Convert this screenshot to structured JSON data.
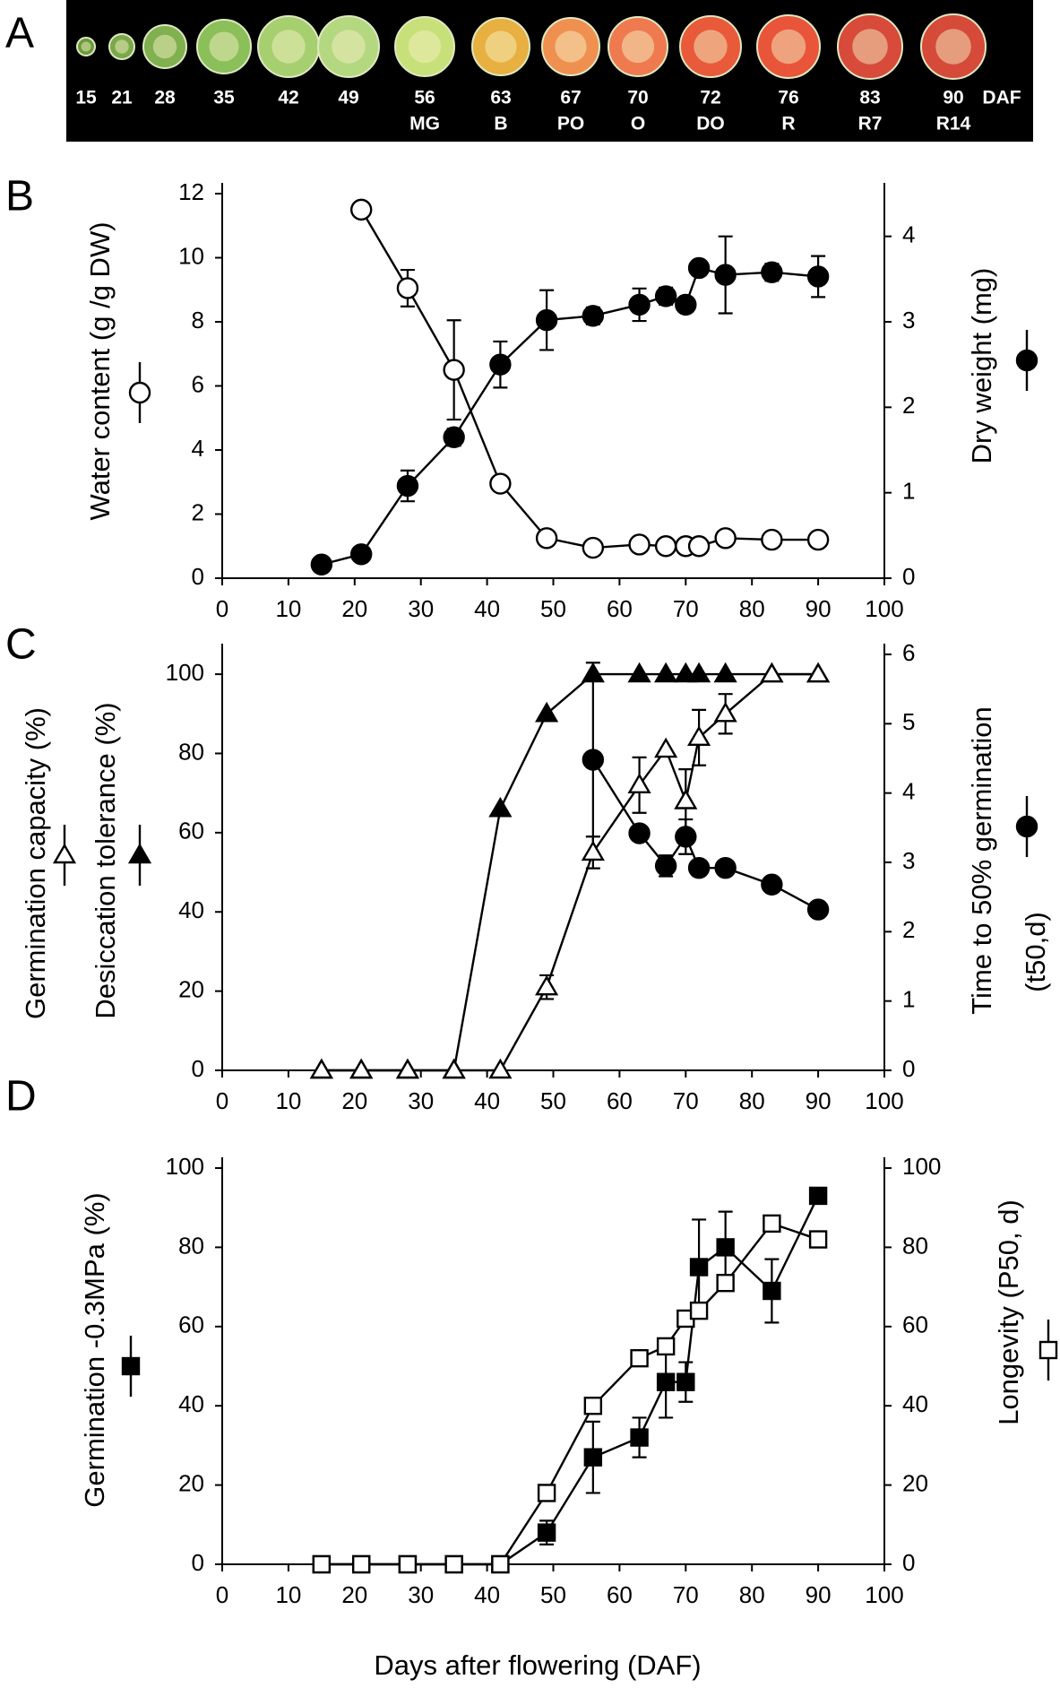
{
  "photo_strip": {
    "label": "A",
    "days": [
      "15",
      "21",
      "28",
      "35",
      "42",
      "49",
      "56",
      "63",
      "67",
      "70",
      "72",
      "76",
      "83",
      "90"
    ],
    "stages": [
      null,
      null,
      null,
      null,
      null,
      null,
      "MG",
      "B",
      "PO",
      "O",
      "DO",
      "R",
      "R7",
      "R14"
    ],
    "unit": "DAF"
  },
  "chart_data": [
    {
      "type": "line",
      "panel_label": "B",
      "xlim": [
        0,
        100
      ],
      "xticks": [
        0,
        10,
        20,
        30,
        40,
        50,
        60,
        70,
        80,
        90,
        100
      ],
      "ylim": [
        0,
        12
      ],
      "yticks": [
        0,
        2,
        4,
        6,
        8,
        10,
        12
      ],
      "y2lim": [
        0,
        4.5
      ],
      "y2ticks": [
        0,
        1,
        2,
        3,
        4
      ],
      "y_label": [
        "Water content (g /g DW)"
      ],
      "y2_label": [
        "Dry weight (mg)"
      ],
      "series": [
        {
          "marker": "circle",
          "fill": "#ffffff",
          "color": "#000000",
          "x": [
            21,
            28,
            35,
            42,
            49,
            56,
            63,
            67,
            70,
            72,
            76,
            83,
            90
          ],
          "values": [
            11.5,
            9.05,
            6.5,
            2.95,
            1.25,
            0.95,
            1.05,
            1.0,
            1.0,
            1.0,
            1.25,
            1.2,
            1.2
          ],
          "errors": [
            null,
            0.57,
            1.55,
            null,
            null,
            null,
            null,
            null,
            null,
            null,
            null,
            null,
            null
          ]
        },
        {
          "marker": "circle",
          "fill": "#000000",
          "color": "#000000",
          "axis": "y2",
          "x": [
            15,
            21,
            28,
            35,
            42,
            49,
            56,
            63,
            67,
            70,
            72,
            76,
            83,
            90
          ],
          "values": [
            0.16,
            0.28,
            1.08,
            1.65,
            2.5,
            3.02,
            3.07,
            3.2,
            3.3,
            3.2,
            3.63,
            3.55,
            3.58,
            3.53
          ],
          "errors": [
            null,
            null,
            0.18,
            0.1,
            0.27,
            0.35,
            0.1,
            0.19,
            0.1,
            0.05,
            0.05,
            0.45,
            0.1,
            0.24
          ]
        }
      ]
    },
    {
      "type": "line",
      "panel_label": "C",
      "xlim": [
        0,
        100
      ],
      "xticks": [
        0,
        10,
        20,
        30,
        40,
        50,
        60,
        70,
        80,
        90,
        100
      ],
      "ylim": [
        0,
        105
      ],
      "yticks": [
        0,
        20,
        40,
        60,
        80,
        100
      ],
      "y2lim": [
        0,
        6
      ],
      "y2ticks": [
        0,
        1,
        2,
        3,
        4,
        5,
        6
      ],
      "y_label": [
        "Germination capacity (%)",
        "Desiccation tolerance (%)"
      ],
      "y2_label": [
        "Time to 50% germination",
        "(t50,d)"
      ],
      "series": [
        {
          "marker": "triangle",
          "fill": "#000000",
          "color": "#000000",
          "x": [
            15,
            21,
            28,
            35,
            42,
            49,
            56,
            63,
            67,
            70,
            72,
            76,
            83,
            90
          ],
          "values": [
            0,
            0,
            0,
            0,
            66,
            90,
            100,
            100,
            100,
            100,
            100,
            100,
            100,
            100
          ],
          "errors": [
            null,
            null,
            null,
            null,
            null,
            null,
            null,
            null,
            null,
            null,
            null,
            null,
            null,
            null
          ]
        },
        {
          "marker": "triangle",
          "fill": "#ffffff",
          "color": "#000000",
          "x": [
            15,
            21,
            28,
            35,
            42,
            49,
            56,
            63,
            67,
            70,
            72,
            76,
            83,
            90
          ],
          "values": [
            0,
            0,
            0,
            0,
            0,
            21,
            55,
            72,
            81,
            68,
            84,
            90,
            100,
            100
          ],
          "errors": [
            null,
            null,
            null,
            null,
            null,
            3,
            4,
            7,
            null,
            8,
            7,
            5,
            null,
            null
          ]
        },
        {
          "marker": "circle",
          "fill": "#000000",
          "color": "#000000",
          "axis": "y2",
          "x": [
            56,
            63,
            67,
            70,
            72,
            76,
            83,
            90
          ],
          "values": [
            4.48,
            3.42,
            2.95,
            3.37,
            2.92,
            2.92,
            2.68,
            2.32
          ],
          "errors": [
            1.4,
            0.1,
            0.15,
            0.25,
            null,
            null,
            0.08,
            null
          ]
        }
      ]
    },
    {
      "type": "line",
      "panel_label": "D",
      "xlim": [
        0,
        100
      ],
      "xticks": [
        0,
        10,
        20,
        30,
        40,
        50,
        60,
        70,
        80,
        90,
        100
      ],
      "ylim": [
        0,
        100
      ],
      "yticks": [
        0,
        20,
        40,
        60,
        80,
        100
      ],
      "y2lim": [
        0,
        100
      ],
      "y2ticks": [
        0,
        20,
        40,
        60,
        80,
        100
      ],
      "y_label": [
        "Germination -0.3MPa (%)"
      ],
      "y2_label": [
        "Longevity (P50, d)"
      ],
      "x_label": "Days after flowering (DAF)",
      "series": [
        {
          "marker": "square",
          "fill": "#000000",
          "color": "#000000",
          "x": [
            15,
            21,
            28,
            35,
            42,
            49,
            56,
            63,
            67,
            70,
            72,
            76,
            83,
            90
          ],
          "values": [
            0,
            0,
            0,
            0,
            0,
            8,
            27,
            32,
            46,
            46,
            75,
            80,
            69,
            93
          ],
          "errors": [
            null,
            null,
            null,
            null,
            null,
            3,
            9,
            5,
            9,
            5,
            12,
            9,
            8,
            2
          ]
        },
        {
          "marker": "square",
          "fill": "#ffffff",
          "color": "#000000",
          "axis": "y2",
          "x": [
            15,
            21,
            28,
            35,
            42,
            49,
            56,
            63,
            67,
            70,
            72,
            76,
            83,
            90
          ],
          "values": [
            0,
            0,
            0,
            0,
            0,
            18,
            40,
            52,
            55,
            62,
            64,
            71,
            86,
            82
          ],
          "errors": [
            null,
            null,
            null,
            null,
            null,
            null,
            null,
            null,
            null,
            null,
            null,
            null,
            null,
            null
          ]
        }
      ]
    }
  ]
}
